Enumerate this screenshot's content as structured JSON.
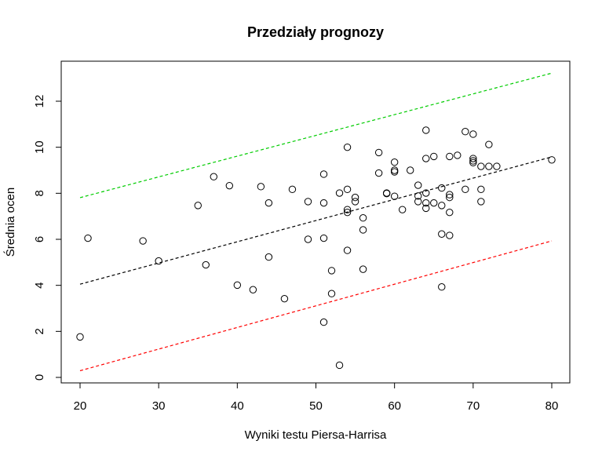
{
  "chart_data": {
    "type": "scatter",
    "title": "Przedziały prognozy",
    "xlabel": "Wyniki testu Piersa-Harrisa",
    "ylabel": "Średnia ocen",
    "xlim": [
      20,
      80
    ],
    "ylim": [
      0,
      13
    ],
    "xticks": [
      "20",
      "30",
      "40",
      "50",
      "60",
      "70",
      "80"
    ],
    "yticks": [
      "0",
      "2",
      "4",
      "6",
      "8",
      "10",
      "12"
    ],
    "grid": false,
    "points": [
      [
        20,
        1.76
      ],
      [
        21,
        6.05
      ],
      [
        28,
        5.93
      ],
      [
        30,
        5.06
      ],
      [
        35,
        7.47
      ],
      [
        36,
        4.89
      ],
      [
        37,
        8.72
      ],
      [
        39,
        8.33
      ],
      [
        40,
        4.01
      ],
      [
        42,
        3.81
      ],
      [
        43,
        8.29
      ],
      [
        44,
        7.58
      ],
      [
        44,
        5.23
      ],
      [
        46,
        3.42
      ],
      [
        47,
        8.17
      ],
      [
        49,
        7.64
      ],
      [
        49,
        6.0
      ],
      [
        51,
        8.83
      ],
      [
        51,
        7.58
      ],
      [
        51,
        6.05
      ],
      [
        51,
        2.4
      ],
      [
        52,
        4.64
      ],
      [
        52,
        3.64
      ],
      [
        53,
        8.01
      ],
      [
        53,
        0.53
      ],
      [
        54,
        10.0
      ],
      [
        54,
        8.17
      ],
      [
        54,
        7.29
      ],
      [
        54,
        7.17
      ],
      [
        54,
        5.52
      ],
      [
        55,
        7.82
      ],
      [
        55,
        7.64
      ],
      [
        56,
        6.93
      ],
      [
        56,
        6.41
      ],
      [
        56,
        4.7
      ],
      [
        58,
        9.77
      ],
      [
        58,
        8.88
      ],
      [
        59,
        8.01
      ],
      [
        59,
        7.99
      ],
      [
        60,
        9.35
      ],
      [
        60,
        9.0
      ],
      [
        60,
        8.93
      ],
      [
        60,
        7.87
      ],
      [
        61,
        7.29
      ],
      [
        62,
        9.0
      ],
      [
        63,
        8.35
      ],
      [
        63,
        7.88
      ],
      [
        63,
        7.64
      ],
      [
        64,
        10.74
      ],
      [
        64,
        9.51
      ],
      [
        64,
        8.01
      ],
      [
        64,
        7.58
      ],
      [
        64,
        7.35
      ],
      [
        65,
        9.6
      ],
      [
        65,
        7.58
      ],
      [
        66,
        8.23
      ],
      [
        66,
        7.47
      ],
      [
        66,
        6.23
      ],
      [
        66,
        3.93
      ],
      [
        67,
        9.6
      ],
      [
        67,
        7.94
      ],
      [
        67,
        7.82
      ],
      [
        67,
        7.17
      ],
      [
        67,
        6.17
      ],
      [
        68,
        9.65
      ],
      [
        69,
        10.68
      ],
      [
        69,
        8.17
      ],
      [
        70,
        10.57
      ],
      [
        70,
        9.51
      ],
      [
        70,
        9.41
      ],
      [
        70,
        9.33
      ],
      [
        71,
        9.17
      ],
      [
        71,
        8.17
      ],
      [
        71,
        7.64
      ],
      [
        72,
        10.12
      ],
      [
        72,
        9.17
      ],
      [
        73,
        9.17
      ],
      [
        80,
        9.45
      ]
    ],
    "lines": [
      {
        "style": "dashed",
        "color": "#000000",
        "x": [
          20,
          80
        ],
        "y": [
          4.05,
          9.58
        ]
      },
      {
        "style": "dashed",
        "color": "#00cc00",
        "x": [
          20,
          80
        ],
        "y": [
          7.81,
          13.22
        ]
      },
      {
        "style": "dashed",
        "color": "#ff0000",
        "x": [
          20,
          80
        ],
        "y": [
          0.29,
          5.93
        ]
      }
    ]
  }
}
